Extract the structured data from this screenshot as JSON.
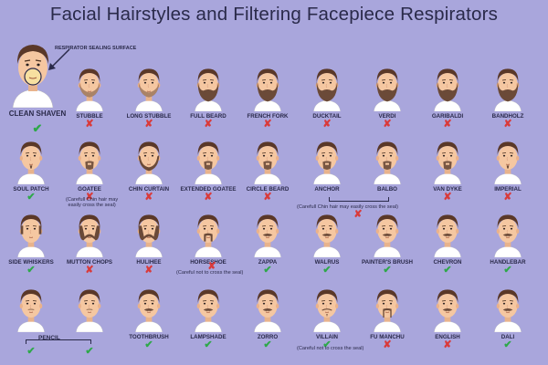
{
  "title": "Facial Hairstyles and Filtering Facepiece Respirators",
  "colors": {
    "background": "#a9a6dc",
    "skin": "#f5c7a1",
    "hair": "#5a3828",
    "beard": "#6b4a38",
    "shirt": "#ffffff",
    "ok": "#2ea84a",
    "bad": "#d93a3a"
  },
  "clean_shaven": {
    "label": "CLEAN SHAVEN",
    "mark": "✔",
    "ok": true,
    "sealing_label": "RESPIRATOR SEALING SURFACE"
  },
  "styles": [
    {
      "label": "STUBBLE",
      "ok": false,
      "mark": "✘",
      "beard": "stubble"
    },
    {
      "label": "LONG STUBBLE",
      "ok": false,
      "mark": "✘",
      "beard": "stubble"
    },
    {
      "label": "FULL BEARD",
      "ok": false,
      "mark": "✘",
      "beard": "full"
    },
    {
      "label": "FRENCH FORK",
      "ok": false,
      "mark": "✘",
      "beard": "full"
    },
    {
      "label": "DUCKTAIL",
      "ok": false,
      "mark": "✘",
      "beard": "full"
    },
    {
      "label": "VERDI",
      "ok": false,
      "mark": "✘",
      "beard": "full"
    },
    {
      "label": "GARIBALDI",
      "ok": false,
      "mark": "✘",
      "beard": "full"
    },
    {
      "label": "BANDHOLZ",
      "ok": false,
      "mark": "✘",
      "beard": "full"
    },
    {
      "label": "SOUL PATCH",
      "ok": true,
      "mark": "✔",
      "beard": "patch"
    },
    {
      "label": "GOATEE",
      "ok": false,
      "mark": "✘",
      "beard": "goatee"
    },
    {
      "label": "CHIN CURTAIN",
      "ok": false,
      "mark": "✘",
      "beard": "curtain"
    },
    {
      "label": "EXTENDED GOATEE",
      "ok": false,
      "mark": "✘",
      "beard": "goatee"
    },
    {
      "label": "CIRCLE BEARD",
      "ok": false,
      "mark": "✘",
      "beard": "goatee"
    },
    {
      "label": "ANCHOR",
      "ok": false,
      "mark": "",
      "beard": "goatee"
    },
    {
      "label": "BALBO",
      "ok": false,
      "mark": "",
      "beard": "goatee"
    },
    {
      "label": "VAN DYKE",
      "ok": false,
      "mark": "✘",
      "beard": "goatee"
    },
    {
      "label": "IMPERIAL",
      "ok": false,
      "mark": "✘",
      "beard": "patch"
    },
    {
      "label": "SIDE WHISKERS",
      "ok": true,
      "mark": "✔",
      "beard": "whiskers"
    },
    {
      "label": "MUTTON CHOPS",
      "ok": false,
      "mark": "✘",
      "beard": "chops"
    },
    {
      "label": "HULIHEE",
      "ok": false,
      "mark": "✘",
      "beard": "chops"
    },
    {
      "label": "HORSESHOE",
      "ok": false,
      "mark": "",
      "beard": "horseshoe"
    },
    {
      "label": "ZAPPA",
      "ok": true,
      "mark": "✔",
      "beard": "mustache"
    },
    {
      "label": "WALRUS",
      "ok": true,
      "mark": "✔",
      "beard": "mustache"
    },
    {
      "label": "PAINTER'S BRUSH",
      "ok": true,
      "mark": "✔",
      "beard": "mustache"
    },
    {
      "label": "CHEVRON",
      "ok": true,
      "mark": "✔",
      "beard": "mustache"
    },
    {
      "label": "HANDLEBAR",
      "ok": true,
      "mark": "✔",
      "beard": "mustache"
    },
    {
      "label": "",
      "ok": true,
      "mark": "✔",
      "beard": "pencil"
    },
    {
      "label": "",
      "ok": true,
      "mark": "✔",
      "beard": "pencil"
    },
    {
      "label": "TOOTHBRUSH",
      "ok": true,
      "mark": "✔",
      "beard": "mustache"
    },
    {
      "label": "LAMPSHADE",
      "ok": true,
      "mark": "✔",
      "beard": "mustache"
    },
    {
      "label": "ZORRO",
      "ok": true,
      "mark": "✔",
      "beard": "mustache"
    },
    {
      "label": "VILLAIN",
      "ok": true,
      "mark": "✔",
      "beard": "villain"
    },
    {
      "label": "FU MANCHU",
      "ok": false,
      "mark": "✘",
      "beard": "fumanchu"
    },
    {
      "label": "ENGLISH",
      "ok": false,
      "mark": "✘",
      "beard": "mustache"
    },
    {
      "label": "DALI",
      "ok": true,
      "mark": "✔",
      "beard": "mustache"
    }
  ],
  "notes": {
    "goatee": "(Carefull Chin hair may\neasily cross the seal)",
    "anchor_balbo": "(Carefull Chin hair may easily cross the seal)",
    "anchor_balbo_mark": "✘",
    "horseshoe": "(Careful not to cross the seal)",
    "horseshoe_mark": "✘",
    "pencil": "PENCIL",
    "villain": "(Careful not to cross the seal)"
  }
}
